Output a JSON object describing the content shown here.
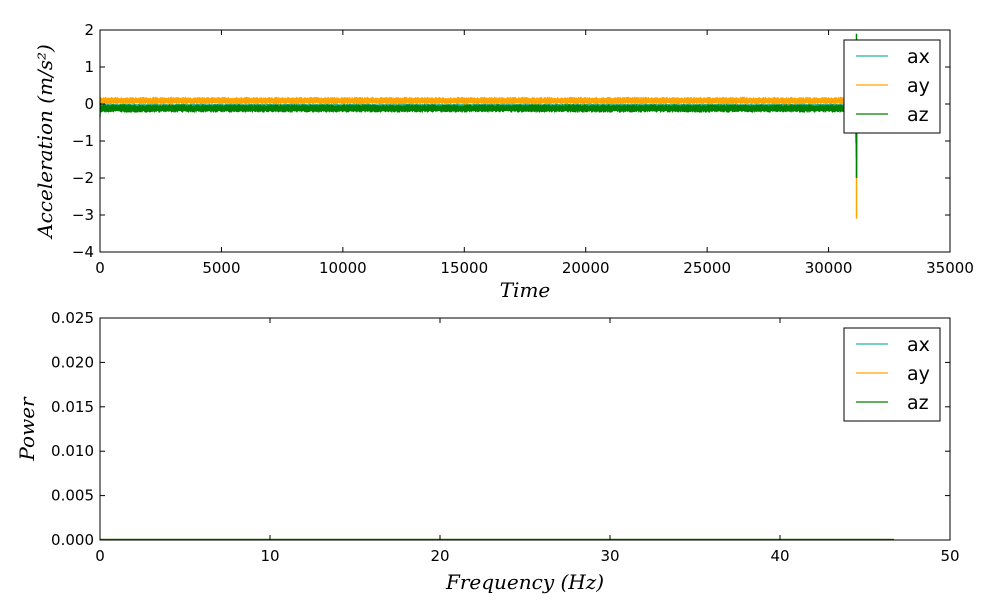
{
  "chart_data": [
    {
      "type": "line",
      "xlabel": "Time",
      "ylabel": "Acceleration (m/s²)",
      "xlim": [
        0,
        35000
      ],
      "ylim": [
        -4,
        2
      ],
      "xticks": [
        0,
        5000,
        10000,
        15000,
        20000,
        25000,
        30000,
        35000
      ],
      "xtick_labels": [
        "0",
        "5000",
        "10000",
        "15000",
        "20000",
        "25000",
        "30000",
        "35000"
      ],
      "yticks": [
        -4,
        -3,
        -2,
        -1,
        0,
        1,
        2
      ],
      "ytick_labels": [
        "−4",
        "−3",
        "−2",
        "−1",
        "0",
        "1",
        "2"
      ],
      "legend_position": "top-right",
      "series": [
        {
          "name": "ax",
          "color": "#20b2aa",
          "x": [
            0,
            30,
            60,
            31100,
            31150,
            31200
          ],
          "y_low": [
            -0.4,
            -0.1,
            -0.1,
            -0.1,
            -0.6,
            -0.1
          ],
          "y_high": [
            0.1,
            0.0,
            0.0,
            0.0,
            0.3,
            0.0
          ]
        },
        {
          "name": "ay",
          "color": "#ffa500",
          "x": [
            0,
            30,
            60,
            31100,
            31150,
            31200
          ],
          "y_low": [
            -0.2,
            0.0,
            0.0,
            0.0,
            -3.1,
            0.0
          ],
          "y_high": [
            0.3,
            0.18,
            0.18,
            0.18,
            0.3,
            0.18
          ]
        },
        {
          "name": "az",
          "color": "#008000",
          "x": [
            0,
            30,
            60,
            31100,
            31150,
            31200
          ],
          "y_low": [
            -0.5,
            -0.22,
            -0.22,
            -0.22,
            -2.0,
            -0.22
          ],
          "y_high": [
            0.1,
            -0.02,
            -0.02,
            -0.02,
            1.9,
            -0.02
          ]
        }
      ]
    },
    {
      "type": "line",
      "xlabel": "Frequency (Hz)",
      "ylabel": "Power",
      "xlim": [
        0,
        50
      ],
      "ylim": [
        0,
        0.025
      ],
      "xticks": [
        0,
        10,
        20,
        30,
        40,
        50
      ],
      "xtick_labels": [
        "0",
        "10",
        "20",
        "30",
        "40",
        "50"
      ],
      "yticks": [
        0,
        0.005,
        0.01,
        0.015,
        0.02,
        0.025
      ],
      "ytick_labels": [
        "0.000",
        "0.005",
        "0.010",
        "0.015",
        "0.020",
        "0.025"
      ],
      "legend_position": "top-right",
      "series": [
        {
          "name": "ax",
          "color": "#20b2aa",
          "x": [
            0,
            46.7
          ],
          "y": [
            0,
            0
          ]
        },
        {
          "name": "ay",
          "color": "#ffa500",
          "x": [
            0,
            46.7
          ],
          "y": [
            0,
            0
          ]
        },
        {
          "name": "az",
          "color": "#008000",
          "x": [
            0,
            46.7
          ],
          "y": [
            0,
            0
          ]
        }
      ]
    }
  ]
}
